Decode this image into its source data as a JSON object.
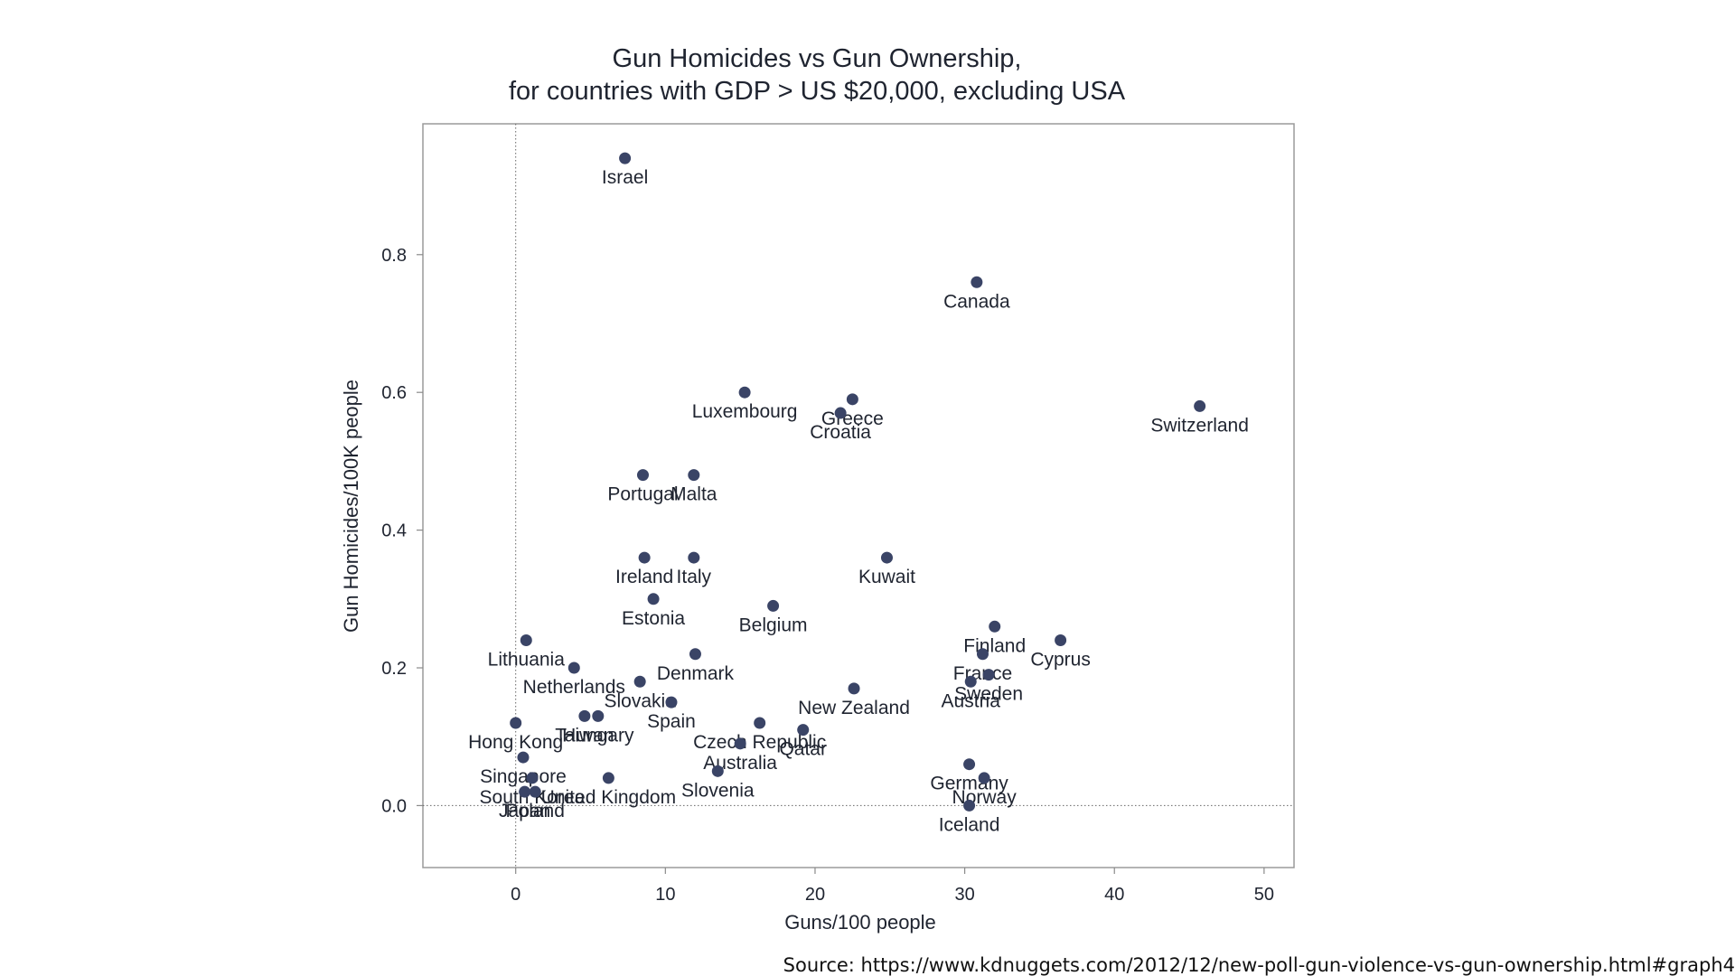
{
  "chart_data": {
    "type": "scatter",
    "title": "Gun Homicides vs Gun Ownership,",
    "subtitle": "for countries with GDP > US $20,000, excluding USA",
    "xlabel": "Guns/100 people",
    "ylabel": "Gun Homicides/100K people",
    "xlim": [
      -6.2,
      52
    ],
    "ylim": [
      -0.09,
      0.99
    ],
    "xticks": [
      0,
      10,
      20,
      30,
      40,
      50
    ],
    "yticks": [
      0.0,
      0.2,
      0.4,
      0.6,
      0.8
    ],
    "ytick_labels": [
      "0.0",
      "0.2",
      "0.4",
      "0.6",
      "0.8"
    ],
    "reference_lines": {
      "x": 0,
      "y": 0
    },
    "points": [
      {
        "label": "Israel",
        "x": 7.3,
        "y": 0.94
      },
      {
        "label": "Canada",
        "x": 30.8,
        "y": 0.76
      },
      {
        "label": "Switzerland",
        "x": 45.7,
        "y": 0.58
      },
      {
        "label": "Luxembourg",
        "x": 15.3,
        "y": 0.6
      },
      {
        "label": "Greece",
        "x": 22.5,
        "y": 0.59
      },
      {
        "label": "Croatia",
        "x": 21.7,
        "y": 0.57
      },
      {
        "label": "Portugal",
        "x": 8.5,
        "y": 0.48
      },
      {
        "label": "Malta",
        "x": 11.9,
        "y": 0.48
      },
      {
        "label": "Ireland",
        "x": 8.6,
        "y": 0.36
      },
      {
        "label": "Italy",
        "x": 11.9,
        "y": 0.36
      },
      {
        "label": "Kuwait",
        "x": 24.8,
        "y": 0.36
      },
      {
        "label": "Estonia",
        "x": 9.2,
        "y": 0.3
      },
      {
        "label": "Belgium",
        "x": 17.2,
        "y": 0.29
      },
      {
        "label": "Finland",
        "x": 32.0,
        "y": 0.26
      },
      {
        "label": "Cyprus",
        "x": 36.4,
        "y": 0.24
      },
      {
        "label": "Lithuania",
        "x": 0.7,
        "y": 0.24
      },
      {
        "label": "Denmark",
        "x": 12.0,
        "y": 0.22
      },
      {
        "label": "France",
        "x": 31.2,
        "y": 0.22
      },
      {
        "label": "Netherlands",
        "x": 3.9,
        "y": 0.2
      },
      {
        "label": "Sweden",
        "x": 31.6,
        "y": 0.19
      },
      {
        "label": "Slovakia",
        "x": 8.3,
        "y": 0.18
      },
      {
        "label": "Austria",
        "x": 30.4,
        "y": 0.18
      },
      {
        "label": "New Zealand",
        "x": 22.6,
        "y": 0.17
      },
      {
        "label": "Spain",
        "x": 10.4,
        "y": 0.15
      },
      {
        "label": "Taiwan",
        "x": 4.6,
        "y": 0.13
      },
      {
        "label": "Hungary",
        "x": 5.5,
        "y": 0.13
      },
      {
        "label": "Hong Kong",
        "x": 0.0,
        "y": 0.12
      },
      {
        "label": "Czech Republic",
        "x": 16.3,
        "y": 0.12
      },
      {
        "label": "Qatar",
        "x": 19.2,
        "y": 0.11
      },
      {
        "label": "Australia",
        "x": 15.0,
        "y": 0.09
      },
      {
        "label": "Singapore",
        "x": 0.5,
        "y": 0.07
      },
      {
        "label": "Germany",
        "x": 30.3,
        "y": 0.06
      },
      {
        "label": "Slovenia",
        "x": 13.5,
        "y": 0.05
      },
      {
        "label": "United Kingdom",
        "x": 6.2,
        "y": 0.04
      },
      {
        "label": "Norway",
        "x": 31.3,
        "y": 0.04
      },
      {
        "label": "South Korea",
        "x": 1.1,
        "y": 0.04
      },
      {
        "label": "Poland",
        "x": 1.3,
        "y": 0.02
      },
      {
        "label": "Japan",
        "x": 0.6,
        "y": 0.02
      },
      {
        "label": "Iceland",
        "x": 30.3,
        "y": 0.0
      }
    ]
  },
  "source_note": "Source: https://www.kdnuggets.com/2012/12/new-poll-gun-violence-vs-gun-ownership.html#graph4"
}
